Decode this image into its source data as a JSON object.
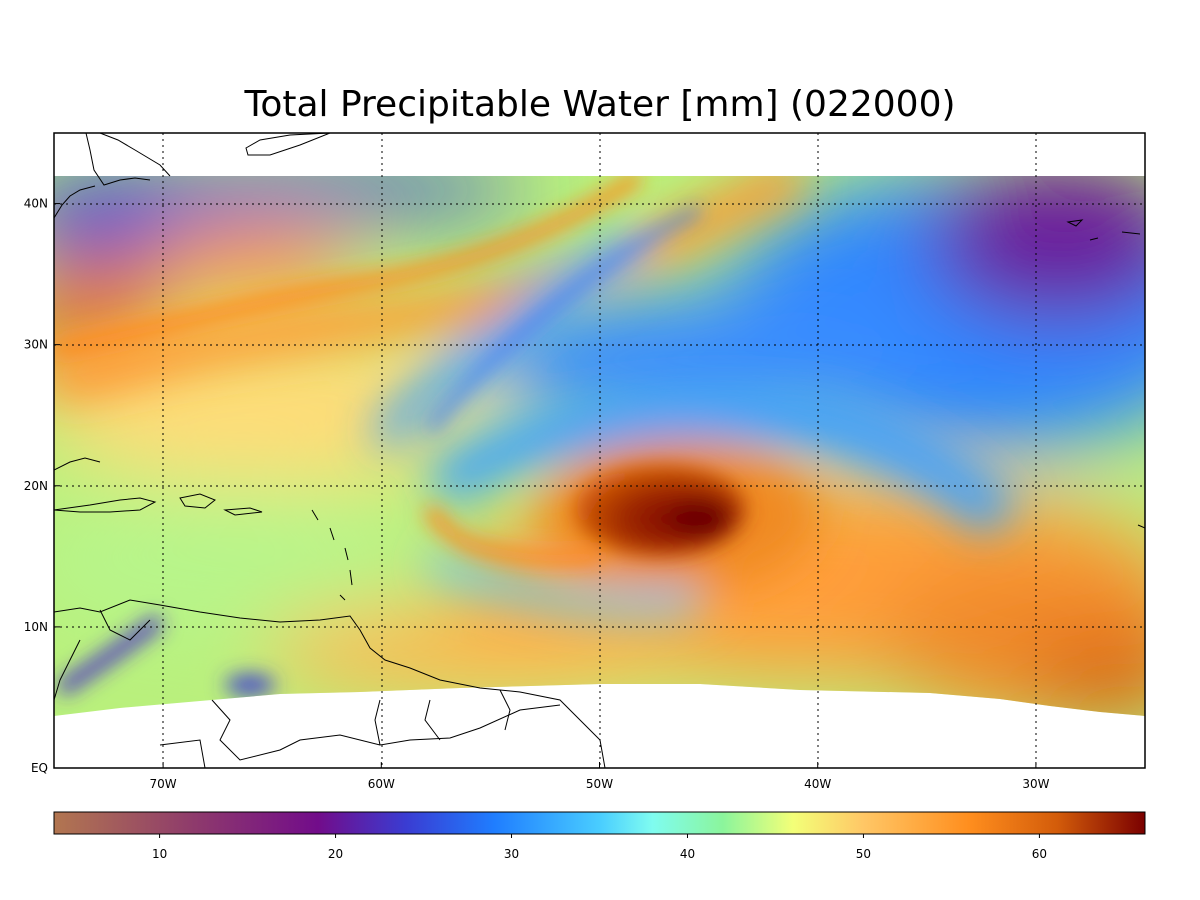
{
  "title": "Total Precipitable Water [mm]  (022000)",
  "map": {
    "type": "filled-contour-map",
    "lon_range": [
      -75,
      -25
    ],
    "lat_range": [
      0,
      45
    ],
    "data_lat_range": [
      4,
      42
    ],
    "lon_ticks": [
      {
        "value": -70,
        "label": "70W"
      },
      {
        "value": -60,
        "label": "60W"
      },
      {
        "value": -50,
        "label": "50W"
      },
      {
        "value": -40,
        "label": "40W"
      },
      {
        "value": -30,
        "label": "30W"
      }
    ],
    "lat_ticks": [
      {
        "value": 0,
        "label": "EQ"
      },
      {
        "value": 10,
        "label": "10N"
      },
      {
        "value": 20,
        "label": "20N"
      },
      {
        "value": 30,
        "label": "30N"
      },
      {
        "value": 40,
        "label": "40N"
      }
    ],
    "grid": "dotted",
    "cyclone_center": {
      "lon": -45.5,
      "lat": 17.5,
      "max_value": 65
    }
  },
  "colorbar": {
    "range": [
      4,
      66
    ],
    "ticks": [
      {
        "value": 10,
        "label": "10"
      },
      {
        "value": 20,
        "label": "20"
      },
      {
        "value": 30,
        "label": "30"
      },
      {
        "value": 40,
        "label": "40"
      },
      {
        "value": 50,
        "label": "50"
      },
      {
        "value": 60,
        "label": "60"
      }
    ],
    "stops": [
      {
        "v": 4,
        "c": "#b27650"
      },
      {
        "v": 12,
        "c": "#8e3a6c"
      },
      {
        "v": 19,
        "c": "#720c8a"
      },
      {
        "v": 24,
        "c": "#3a3cd2"
      },
      {
        "v": 29,
        "c": "#1f7dff"
      },
      {
        "v": 35,
        "c": "#49cdff"
      },
      {
        "v": 38,
        "c": "#7ffcf0"
      },
      {
        "v": 42,
        "c": "#8bf59c"
      },
      {
        "v": 46,
        "c": "#f3ff78"
      },
      {
        "v": 50,
        "c": "#ffc766"
      },
      {
        "v": 56,
        "c": "#ff8e1e"
      },
      {
        "v": 61,
        "c": "#d35c0a"
      },
      {
        "v": 66,
        "c": "#7a0000"
      }
    ]
  }
}
